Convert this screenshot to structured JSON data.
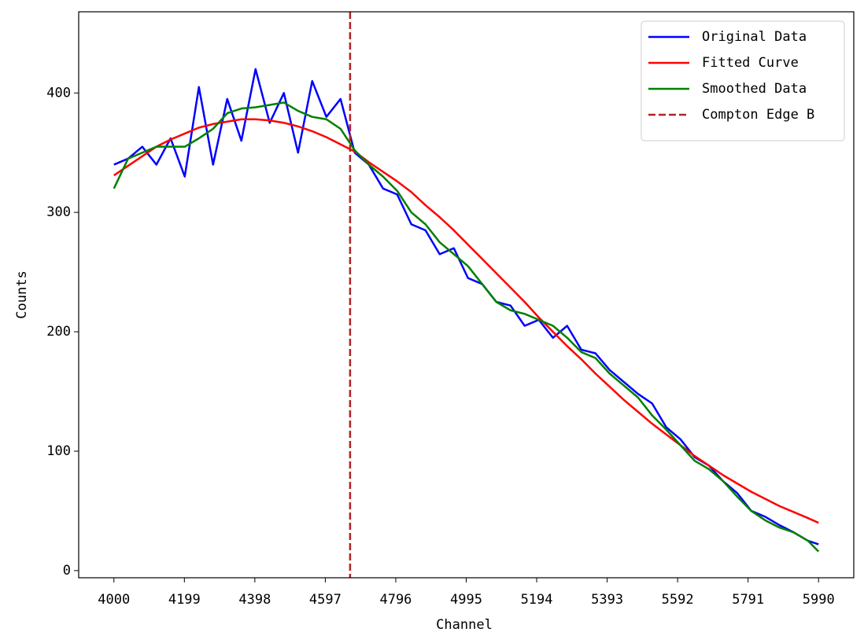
{
  "chart_data": {
    "type": "line",
    "x_label": "Channel",
    "y_label": "Counts",
    "x": [
      4000,
      4040,
      4080,
      4120,
      4160,
      4200,
      4240,
      4280,
      4320,
      4360,
      4400,
      4440,
      4480,
      4520,
      4560,
      4600,
      4640,
      4680,
      4720,
      4760,
      4800,
      4840,
      4880,
      4920,
      4960,
      5000,
      5040,
      5080,
      5120,
      5160,
      5200,
      5240,
      5280,
      5320,
      5360,
      5400,
      5440,
      5480,
      5520,
      5560,
      5600,
      5640,
      5680,
      5720,
      5760,
      5800,
      5840,
      5880,
      5920,
      5960,
      5990
    ],
    "series": [
      {
        "name": "Original Data",
        "color": "#0000ff",
        "values": [
          340,
          345,
          355,
          340,
          362,
          330,
          405,
          340,
          395,
          360,
          420,
          375,
          400,
          350,
          410,
          380,
          395,
          350,
          340,
          320,
          315,
          290,
          285,
          265,
          270,
          245,
          240,
          225,
          222,
          205,
          210,
          195,
          205,
          185,
          182,
          168,
          158,
          148,
          140,
          120,
          110,
          95,
          88,
          75,
          65,
          50,
          45,
          38,
          32,
          25,
          22
        ]
      },
      {
        "name": "Fitted Curve",
        "color": "#ff0000",
        "values": [
          331,
          339,
          347,
          355,
          361,
          366,
          371,
          374,
          376,
          378,
          378,
          377,
          375,
          372,
          368,
          363,
          357,
          351,
          342,
          334,
          326,
          317,
          306,
          296,
          285,
          273,
          261,
          249,
          237,
          225,
          212,
          200,
          188,
          177,
          165,
          154,
          143,
          133,
          123,
          114,
          105,
          96,
          88,
          80,
          73,
          66,
          60,
          54,
          49,
          44,
          40
        ]
      },
      {
        "name": "Smoothed Data",
        "color": "#008000",
        "values": [
          320,
          345,
          350,
          355,
          355,
          355,
          362,
          370,
          383,
          387,
          388,
          390,
          392,
          385,
          380,
          378,
          370,
          352,
          340,
          330,
          318,
          300,
          290,
          275,
          265,
          255,
          240,
          225,
          218,
          215,
          210,
          205,
          195,
          183,
          178,
          165,
          155,
          145,
          130,
          118,
          105,
          92,
          85,
          75,
          62,
          50,
          42,
          36,
          32,
          25,
          16
        ]
      }
    ],
    "vlines": [
      {
        "name": "Compton Edge B",
        "x": 4667,
        "color": "#b22222",
        "dashed": true
      }
    ],
    "xlim": [
      3900.5,
      6089.5
    ],
    "ylim": [
      -6,
      468
    ],
    "xticks": [
      4000,
      4199,
      4398,
      4597,
      4796,
      4995,
      5194,
      5393,
      5592,
      5791,
      5990
    ],
    "yticks": [
      0,
      100,
      200,
      300,
      400
    ],
    "legend": "upper right"
  }
}
